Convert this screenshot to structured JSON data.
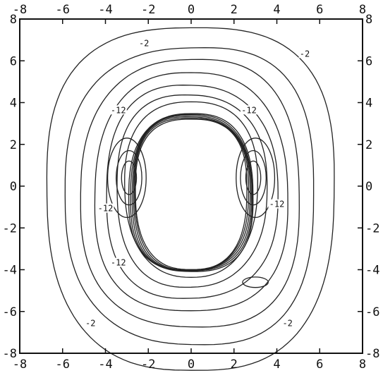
{
  "chart_data": {
    "type": "contour",
    "title": "",
    "xlabel": "",
    "ylabel": "",
    "xlim": [
      -8,
      8
    ],
    "ylim": [
      -8,
      8
    ],
    "xticks": [
      -8,
      -6,
      -4,
      -2,
      0,
      2,
      4,
      6,
      8
    ],
    "yticks": [
      -8,
      -6,
      -4,
      -2,
      0,
      2,
      4,
      6,
      8
    ],
    "tick_labels": [
      "-8",
      "-6",
      "-4",
      "-2",
      "0",
      "2",
      "4",
      "6",
      "8"
    ],
    "tick_labels_on": [
      "top",
      "bottom",
      "left",
      "right"
    ],
    "grid": false,
    "legend": "none",
    "line_color": "#222222",
    "contour_labels": [
      {
        "text": "-2",
        "x": -2.2,
        "y": 6.8
      },
      {
        "text": "-2",
        "x": 5.3,
        "y": 6.3
      },
      {
        "text": "-12",
        "x": -3.4,
        "y": 3.6
      },
      {
        "text": "-12",
        "x": 2.7,
        "y": 3.6
      },
      {
        "text": "-12",
        "x": -4.0,
        "y": -1.1
      },
      {
        "text": "-12",
        "x": 4.0,
        "y": -0.9
      },
      {
        "text": "-12",
        "x": -3.4,
        "y": -3.7
      },
      {
        "text": "-2",
        "x": -4.7,
        "y": -6.6
      },
      {
        "text": "-2",
        "x": 4.5,
        "y": -6.6
      }
    ],
    "outer_contours": [
      {
        "rx": 3.1,
        "ry": 4.2,
        "cx": 0,
        "cy": -0.1
      },
      {
        "rx": 3.5,
        "ry": 4.6,
        "cx": 0,
        "cy": -0.2
      },
      {
        "rx": 4.0,
        "ry": 5.1,
        "cx": 0,
        "cy": -0.3
      },
      {
        "rx": 4.5,
        "ry": 5.7,
        "cx": 0,
        "cy": -0.35
      },
      {
        "rx": 5.1,
        "ry": 6.4,
        "cx": 0,
        "cy": -0.4
      },
      {
        "rx": 5.8,
        "ry": 7.1,
        "cx": 0,
        "cy": -0.45
      },
      {
        "rx": 6.7,
        "ry": 8.2,
        "cx": 0,
        "cy": -0.5
      }
    ],
    "body": {
      "rx": 2.6,
      "ry": 3.6,
      "cx": 0,
      "cy": -0.35
    },
    "body_rings": [
      0.0,
      0.06,
      0.12,
      0.18,
      0.24,
      0.3
    ],
    "side_lobes": [
      {
        "cx": -2.9,
        "cy": 0.4,
        "rx": 0.35,
        "ry": 0.8
      },
      {
        "cx": -2.9,
        "cy": 0.4,
        "rx": 0.6,
        "ry": 1.3
      },
      {
        "cx": -3.0,
        "cy": 0.4,
        "rx": 0.9,
        "ry": 1.9
      },
      {
        "cx": 2.9,
        "cy": 0.4,
        "rx": 0.35,
        "ry": 0.8
      },
      {
        "cx": 2.9,
        "cy": 0.4,
        "rx": 0.6,
        "ry": 1.3
      },
      {
        "cx": 3.0,
        "cy": 0.4,
        "rx": 0.9,
        "ry": 1.9
      },
      {
        "cx": 3.0,
        "cy": -4.6,
        "rx": 0.6,
        "ry": 0.25
      }
    ]
  }
}
